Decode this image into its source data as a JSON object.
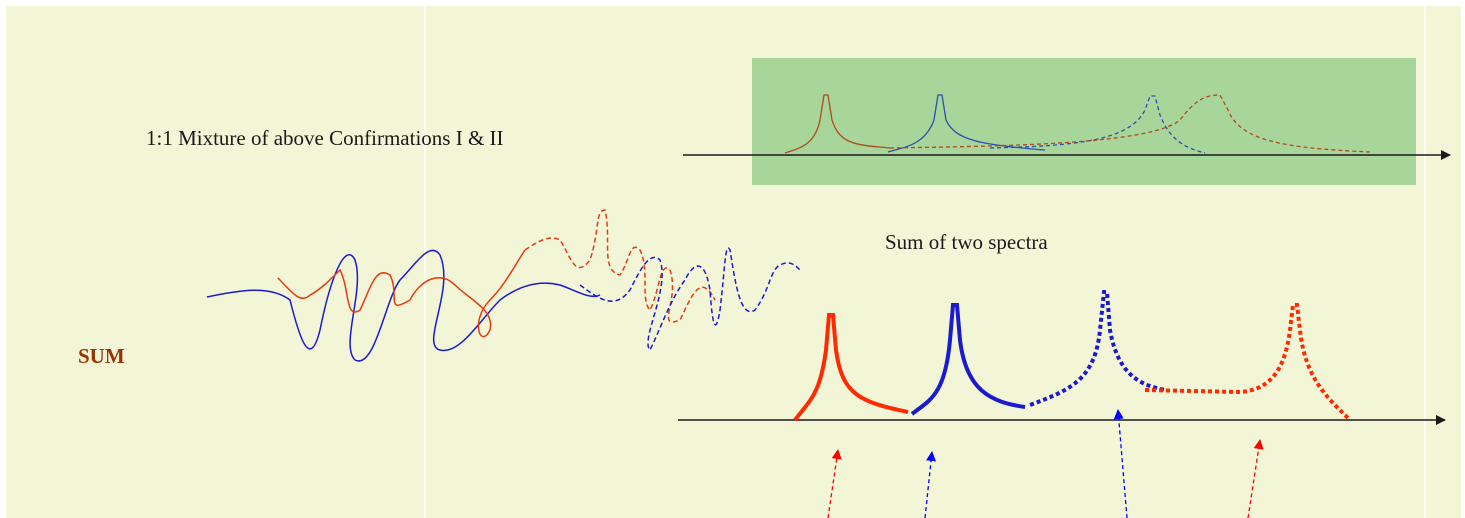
{
  "labels": {
    "mixture": "1:1 Mixture of above Confirmations I & II",
    "sum_of_spectra": "Sum of two spectra",
    "sum": "SUM"
  }
}
